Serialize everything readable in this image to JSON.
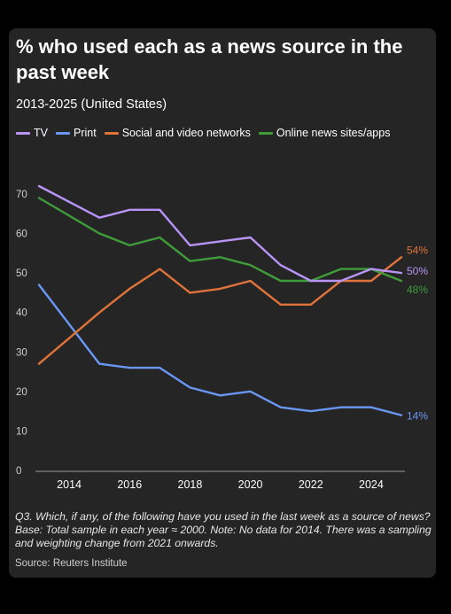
{
  "chart_data": {
    "type": "line",
    "title": "% who used each as a news source in the past week",
    "subtitle": "2013-2025 (United States)",
    "x": [
      2013,
      2015,
      2016,
      2017,
      2018,
      2019,
      2020,
      2021,
      2022,
      2023,
      2024,
      2025
    ],
    "x_ticks": [
      "2014",
      "2016",
      "2018",
      "2020",
      "2022",
      "2024"
    ],
    "y_ticks": [
      "0",
      "10",
      "20",
      "30",
      "40",
      "50",
      "60",
      "70"
    ],
    "ylim": [
      0,
      72
    ],
    "xlim": [
      2013,
      2025
    ],
    "grid": false,
    "legend_position": "top",
    "series": [
      {
        "name": "TV",
        "color": "#b794f6",
        "values": [
          72,
          64,
          66,
          66,
          57,
          58,
          59,
          52,
          48,
          48,
          51,
          50
        ],
        "end_label": "50%"
      },
      {
        "name": "Print",
        "color": "#6a97f3",
        "values": [
          47,
          27,
          26,
          26,
          21,
          19,
          20,
          16,
          15,
          16,
          16,
          14
        ],
        "end_label": "14%"
      },
      {
        "name": "Social and video networks",
        "color": "#e0733a",
        "values": [
          27,
          40,
          46,
          51,
          45,
          46,
          48,
          42,
          42,
          48,
          48,
          54
        ],
        "end_label": "54%"
      },
      {
        "name": "Online news sites/apps",
        "color": "#3f9c3a",
        "values": [
          69,
          60,
          57,
          59,
          53,
          54,
          52,
          48,
          48,
          51,
          51,
          48
        ],
        "end_label": "48%"
      }
    ]
  },
  "footnote": "Q3. Which, if any, of the following have you used in the last week as a source of news? Base: Total sample in each year ≈ 2000. Note: No data for 2014. There was a sampling and weighting change from 2021 onwards.",
  "source": "Source: Reuters Institute"
}
